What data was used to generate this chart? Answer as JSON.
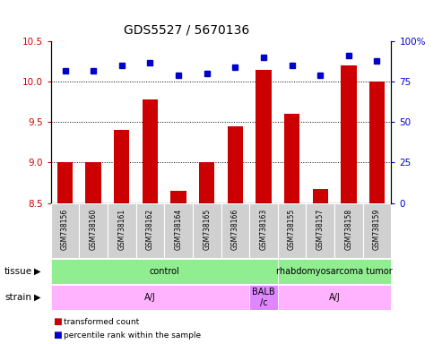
{
  "title": "GDS5527 / 5670136",
  "samples": [
    "GSM738156",
    "GSM738160",
    "GSM738161",
    "GSM738162",
    "GSM738164",
    "GSM738165",
    "GSM738166",
    "GSM738163",
    "GSM738155",
    "GSM738157",
    "GSM738158",
    "GSM738159"
  ],
  "bar_values": [
    9.0,
    9.01,
    9.4,
    9.78,
    8.65,
    9.0,
    9.45,
    10.15,
    9.6,
    8.67,
    10.2,
    10.0
  ],
  "dot_values": [
    82,
    82,
    85,
    87,
    79,
    80,
    84,
    90,
    85,
    79,
    91,
    88
  ],
  "bar_color": "#cc0000",
  "dot_color": "#0000cc",
  "ylim_left": [
    8.5,
    10.5
  ],
  "ylim_right": [
    0,
    100
  ],
  "yticks_left": [
    8.5,
    9.0,
    9.5,
    10.0,
    10.5
  ],
  "yticks_right": [
    0,
    25,
    50,
    75,
    100
  ],
  "grid_values": [
    9.0,
    9.5,
    10.0
  ],
  "tissue_groups": [
    {
      "label": "control",
      "start": 0,
      "end": 8,
      "color": "#90ee90"
    },
    {
      "label": "rhabdomyosarcoma tumor",
      "start": 8,
      "end": 12,
      "color": "#90ee90"
    }
  ],
  "strain_groups": [
    {
      "label": "A/J",
      "start": 0,
      "end": 7,
      "color": "#ffb3ff"
    },
    {
      "label": "BALB\n/c",
      "start": 7,
      "end": 8,
      "color": "#dd88ff"
    },
    {
      "label": "A/J",
      "start": 8,
      "end": 12,
      "color": "#ffb3ff"
    }
  ],
  "tissue_row_label": "tissue",
  "strain_row_label": "strain",
  "legend_bar_label": "transformed count",
  "legend_dot_label": "percentile rank within the sample",
  "bar_color_legend": "#cc0000",
  "dot_color_legend": "#0000cc",
  "bar_baseline": 8.5,
  "sample_box_color": "#d0d0d0",
  "title_fontsize": 10
}
